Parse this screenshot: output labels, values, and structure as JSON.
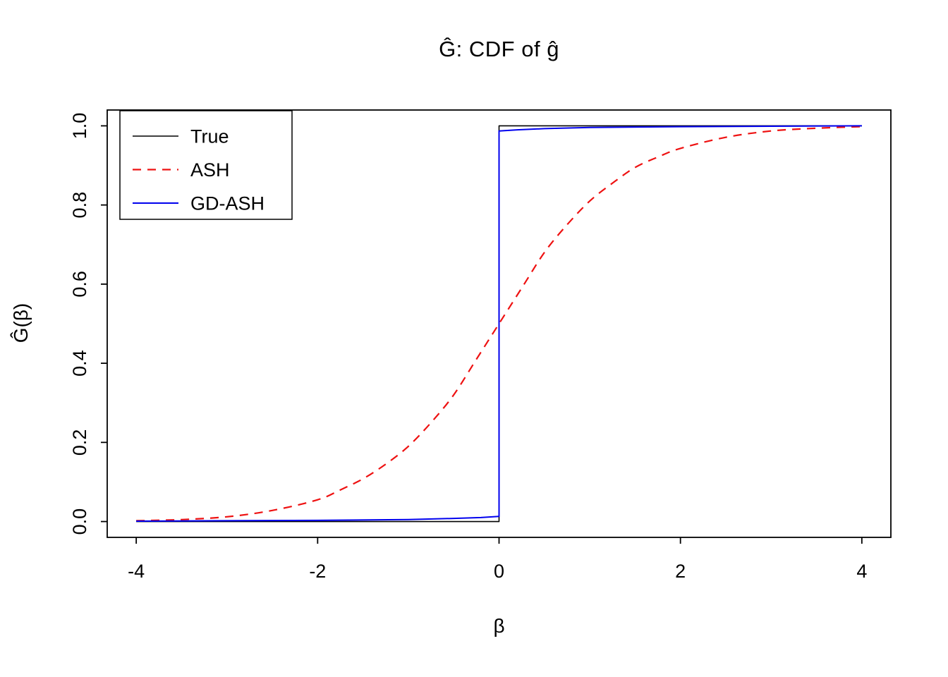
{
  "chart_data": {
    "type": "line",
    "title": "Ĝ: CDF of ĝ",
    "xlabel": "β",
    "ylabel": "Ĝ(β)",
    "xlim": [
      -4,
      4
    ],
    "ylim": [
      0,
      1
    ],
    "axis_expand_fraction": 0.04,
    "grid": false,
    "legend": {
      "position": "topleft"
    },
    "x_ticks": {
      "values": [
        -4,
        -2,
        0,
        2,
        4
      ],
      "labels": [
        "-4",
        "-2",
        "0",
        "2",
        "4"
      ]
    },
    "y_ticks": {
      "values": [
        0,
        0.2,
        0.4,
        0.6,
        0.8,
        1.0
      ],
      "labels": [
        "0.0",
        "0.2",
        "0.4",
        "0.6",
        "0.8",
        "1.0"
      ]
    },
    "series": [
      {
        "name": "True",
        "color": "#000000",
        "dash": false,
        "width": 1.6,
        "smooth": false,
        "points": [
          [
            -4,
            0
          ],
          [
            0,
            0
          ],
          [
            0,
            1
          ],
          [
            4,
            1
          ]
        ]
      },
      {
        "name": "ASH",
        "color": "#ee1111",
        "dash": true,
        "width": 2.2,
        "smooth": true,
        "points": [
          [
            -4,
            0.002
          ],
          [
            -3.5,
            0.005
          ],
          [
            -3,
            0.012
          ],
          [
            -2.5,
            0.028
          ],
          [
            -2,
            0.055
          ],
          [
            -1.75,
            0.08
          ],
          [
            -1.5,
            0.108
          ],
          [
            -1.25,
            0.145
          ],
          [
            -1,
            0.19
          ],
          [
            -0.75,
            0.25
          ],
          [
            -0.5,
            0.32
          ],
          [
            -0.25,
            0.41
          ],
          [
            0,
            0.5
          ],
          [
            0.25,
            0.59
          ],
          [
            0.5,
            0.68
          ],
          [
            0.75,
            0.75
          ],
          [
            1,
            0.81
          ],
          [
            1.25,
            0.855
          ],
          [
            1.5,
            0.895
          ],
          [
            1.75,
            0.921
          ],
          [
            2,
            0.943
          ],
          [
            2.5,
            0.971
          ],
          [
            3,
            0.987
          ],
          [
            3.5,
            0.994
          ],
          [
            4,
            0.998
          ]
        ]
      },
      {
        "name": "GD-ASH",
        "color": "#0000ee",
        "dash": false,
        "width": 2.0,
        "smooth": false,
        "points": [
          [
            -4,
            0.001
          ],
          [
            -3,
            0.002
          ],
          [
            -2,
            0.003
          ],
          [
            -1,
            0.005
          ],
          [
            -0.5,
            0.008
          ],
          [
            -0.2,
            0.01
          ],
          [
            0,
            0.013
          ],
          [
            0,
            0.987
          ],
          [
            0.2,
            0.99
          ],
          [
            0.5,
            0.993
          ],
          [
            1,
            0.996
          ],
          [
            2,
            0.998
          ],
          [
            3,
            0.999
          ],
          [
            4,
            1
          ]
        ]
      }
    ]
  }
}
